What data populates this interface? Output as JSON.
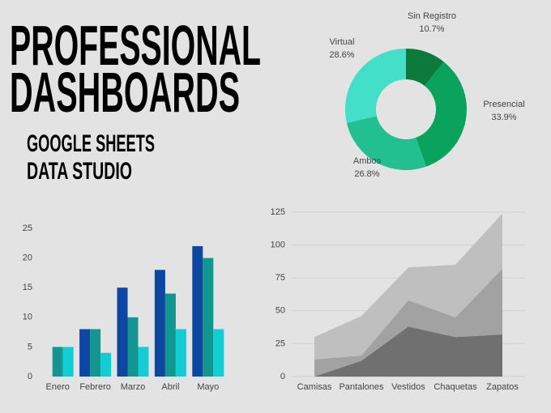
{
  "header": {
    "title_lines": [
      "PROFESSIONAL",
      "DASHBOARDS"
    ],
    "subtitle_lines": [
      "GOOGLE SHEETS",
      "DATA STUDIO"
    ]
  },
  "chart_data": [
    {
      "type": "donut",
      "categories": [
        "Sin Registro",
        "Presencial",
        "Ambos",
        "Virtual"
      ],
      "values": [
        10.7,
        33.9,
        26.8,
        28.6
      ],
      "value_labels": [
        "10.7%",
        "33.9%",
        "26.8%",
        "28.6%"
      ],
      "colors": [
        "#0b7a3c",
        "#0aa35e",
        "#22bf90",
        "#43dfc8"
      ]
    },
    {
      "type": "bar",
      "categories": [
        "Enero",
        "Febrero",
        "Marzo",
        "Abril",
        "Mayo"
      ],
      "series": [
        {
          "color": "#0d47a1",
          "values": [
            0,
            8,
            15,
            18,
            22
          ]
        },
        {
          "color": "#13968f",
          "values": [
            5,
            8,
            10,
            14,
            20
          ]
        },
        {
          "color": "#12cdd4",
          "values": [
            5,
            4,
            5,
            8,
            8
          ]
        }
      ],
      "ylim": [
        0,
        25
      ],
      "yticks": [
        0,
        5,
        10,
        15,
        20,
        25
      ],
      "grid": false
    },
    {
      "type": "stacked_area",
      "categories": [
        "Camisas",
        "Pantalones",
        "Vestidos",
        "Chaquetas",
        "Zapatos"
      ],
      "series": [
        {
          "color": "#707070",
          "values": [
            0,
            12,
            38,
            30,
            32
          ]
        },
        {
          "color": "#a2a2a2",
          "values": [
            13,
            4,
            20,
            15,
            50
          ]
        },
        {
          "color": "#bfbfbf",
          "values": [
            17,
            30,
            25,
            40,
            42
          ]
        }
      ],
      "ylim": [
        0,
        125
      ],
      "yticks": [
        0,
        25,
        50,
        75,
        100,
        125
      ],
      "grid": true
    }
  ]
}
